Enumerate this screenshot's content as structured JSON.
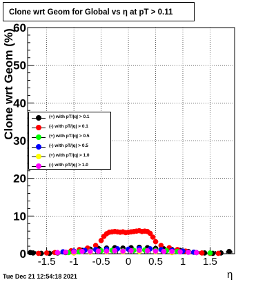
{
  "title": "Clone wrt Geom for Global vs  η at pT > 0.11",
  "footer": "Tue Dec 21 12:54:18 2021",
  "chart_data": {
    "type": "scatter",
    "xlabel": "η",
    "ylabel": "Clone wrt Geom (%)",
    "xlim": [
      -1.85,
      1.95
    ],
    "ylim": [
      0,
      60
    ],
    "grid": true,
    "legend_position": "left-middle",
    "x_ticks": [
      "-1.5",
      "-1",
      "-0.5",
      "0",
      "0.5",
      "1",
      "1.5"
    ],
    "x_tick_values": [
      -1.5,
      -1,
      -0.5,
      0,
      0.5,
      1,
      1.5
    ],
    "y_ticks": [
      "0",
      "10",
      "20",
      "30",
      "40",
      "50",
      "60"
    ],
    "y_tick_values": [
      0,
      10,
      20,
      30,
      40,
      50,
      60
    ],
    "series": [
      {
        "name": "(+) with pT/|q| > 0.1",
        "color": "#000000",
        "x": [
          -1.8,
          -1.75,
          -1.6,
          -1.45,
          -1.3,
          -1.15,
          -1.0,
          -0.85,
          -0.7,
          -0.55,
          -0.4,
          -0.25,
          -0.1,
          0.05,
          0.2,
          0.35,
          0.5,
          0.65,
          0.8,
          0.95,
          1.1,
          1.25,
          1.4,
          1.55,
          1.7,
          1.85
        ],
        "y": [
          0.3,
          0.2,
          0.1,
          0.1,
          0.2,
          0.3,
          0.6,
          0.9,
          1.2,
          1.4,
          1.5,
          1.6,
          1.5,
          1.6,
          1.7,
          1.6,
          1.4,
          1.3,
          1.1,
          0.9,
          0.6,
          0.3,
          0.2,
          0.1,
          0.2,
          0.6
        ]
      },
      {
        "name": "(-) with pT/|q| > 0.1",
        "color": "#ff0000",
        "x": [
          -1.65,
          -1.5,
          -1.35,
          -1.2,
          -1.05,
          -0.9,
          -0.75,
          -0.6,
          -0.5,
          -0.45,
          -0.4,
          -0.35,
          -0.3,
          -0.25,
          -0.2,
          -0.15,
          -0.1,
          -0.05,
          0.0,
          0.05,
          0.1,
          0.15,
          0.2,
          0.25,
          0.3,
          0.35,
          0.4,
          0.45,
          0.5,
          0.6,
          0.75,
          0.9,
          1.05,
          1.2,
          1.35,
          1.5,
          1.65
        ],
        "y": [
          0.1,
          0.2,
          0.3,
          0.5,
          0.8,
          1.1,
          1.5,
          2.2,
          3.5,
          4.6,
          5.3,
          5.7,
          5.8,
          5.9,
          5.8,
          5.7,
          5.8,
          5.6,
          5.7,
          5.8,
          5.9,
          6.0,
          6.1,
          5.9,
          6.0,
          5.9,
          5.4,
          4.4,
          3.2,
          2.2,
          1.6,
          1.1,
          0.7,
          0.4,
          0.2,
          0.1,
          0.1
        ]
      },
      {
        "name": "(+) with pT/|q| > 0.5",
        "color": "#00ff00",
        "x": [
          -1.1,
          -0.9,
          -0.7,
          -0.5,
          -0.3,
          -0.1,
          0.1,
          0.3,
          0.5,
          0.7,
          0.9,
          1.1,
          1.5
        ],
        "y": [
          0.3,
          0.5,
          0.7,
          0.8,
          0.9,
          0.8,
          0.9,
          1.0,
          0.9,
          0.8,
          0.6,
          0.4,
          0.2
        ]
      },
      {
        "name": "(-) with pT/|q| > 0.5",
        "color": "#0000ff",
        "x": [
          -1.2,
          -1.0,
          -0.8,
          -0.6,
          -0.4,
          -0.2,
          0.0,
          0.2,
          0.4,
          0.6,
          0.8,
          1.0,
          1.2
        ],
        "y": [
          0.5,
          0.7,
          0.9,
          1.1,
          1.2,
          1.3,
          1.2,
          1.4,
          1.3,
          1.1,
          0.9,
          0.7,
          0.4
        ]
      },
      {
        "name": "(+) with pT/|q| > 1.0",
        "color": "#ffff00",
        "x": [
          -1.0,
          -0.7,
          -0.4,
          -0.1,
          0.2,
          0.5,
          0.8
        ],
        "y": [
          0.2,
          0.4,
          0.5,
          0.5,
          0.6,
          0.5,
          0.3
        ]
      },
      {
        "name": "(-) with pT/|q| > 1.0",
        "color": "#ff00ff",
        "x": [
          -1.3,
          -1.15,
          -1.0,
          -0.85,
          -0.7,
          -0.55,
          -0.4,
          -0.25,
          -0.1,
          0.05,
          0.2,
          0.35,
          0.5,
          0.65,
          0.8,
          0.95,
          1.1,
          1.25
        ],
        "y": [
          0.3,
          0.4,
          0.5,
          0.6,
          0.6,
          0.7,
          0.7,
          0.8,
          0.7,
          0.8,
          0.9,
          0.8,
          0.7,
          0.6,
          0.6,
          0.5,
          0.4,
          0.3
        ]
      }
    ]
  }
}
